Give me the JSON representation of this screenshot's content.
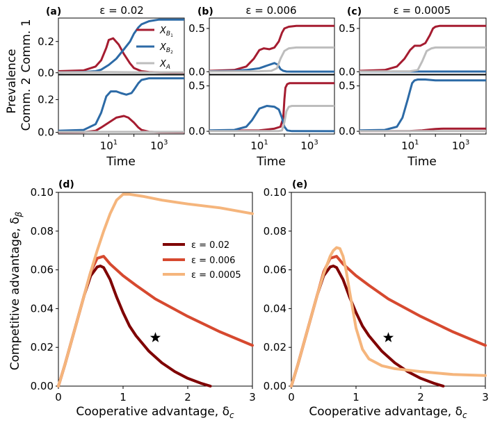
{
  "figure": {
    "shared": {
      "ylabel_prevalence": "Prevalence",
      "ylabel_comm1": "Comm. 1",
      "ylabel_comm2": "Comm. 2",
      "time_label": "Time",
      "time_ticks": [
        "10",
        "10"
      ],
      "time_tick_exponents": [
        "1",
        "3"
      ]
    },
    "top_panels": [
      {
        "label": "(a)",
        "title": "ε = 0.02"
      },
      {
        "label": "(b)",
        "title": "ε = 0.006"
      },
      {
        "label": "(c)",
        "title": "ε = 0.0005"
      }
    ],
    "top_legend": [
      {
        "text": "X",
        "sub": "B",
        "subsub": "1",
        "color": "#a51c30"
      },
      {
        "text": "X",
        "sub": "B",
        "subsub": "2",
        "color": "#2c6aa6"
      },
      {
        "text": "X",
        "sub": "A",
        "subsub": "",
        "color": "#bdbdbd"
      }
    ],
    "bottom_panels": [
      {
        "label": "(d)"
      },
      {
        "label": "(e)"
      }
    ],
    "bottom_axes": {
      "xlabel": "Cooperative advantage, δ",
      "xlabel_sub": "c",
      "ylabel": "Competitive advantage, δ",
      "ylabel_sub": "β",
      "xticks": [
        "0",
        "1",
        "2",
        "3"
      ],
      "yticks": [
        "0.00",
        "0.02",
        "0.04",
        "0.06",
        "0.08",
        "0.10"
      ]
    },
    "bottom_legend": [
      {
        "label": "ε = 0.02",
        "color": "#7f0000"
      },
      {
        "label": "ε = 0.006",
        "color": "#d6492f"
      },
      {
        "label": "ε = 0.0005",
        "color": "#f5b57c"
      }
    ]
  },
  "chart_data": [
    {
      "type": "line",
      "panel": "(a) Comm. 1",
      "title": "ε = 0.02",
      "xscale": "log",
      "xlim": [
        0.1,
        10000
      ],
      "ylim": [
        -0.01,
        0.35
      ],
      "yticks": [
        0.0,
        0.2
      ],
      "ytick_labels": [
        "0.0",
        "0.2"
      ],
      "series": [
        {
          "name": "X_B1",
          "x": [
            0.1,
            1,
            3,
            5,
            8,
            10,
            15,
            25,
            40,
            70,
            100,
            200,
            400,
            1000,
            3000,
            10000
          ],
          "y": [
            0.01,
            0.015,
            0.04,
            0.08,
            0.16,
            0.21,
            0.22,
            0.18,
            0.12,
            0.06,
            0.03,
            0.01,
            0.004,
            0.002,
            0.001,
            0.001
          ]
        },
        {
          "name": "X_B2",
          "x": [
            0.1,
            1,
            3,
            5,
            10,
            20,
            40,
            70,
            100,
            150,
            200,
            400,
            1000,
            3000,
            10000
          ],
          "y": [
            0.003,
            0.005,
            0.01,
            0.02,
            0.05,
            0.09,
            0.15,
            0.2,
            0.25,
            0.29,
            0.31,
            0.33,
            0.34,
            0.34,
            0.34
          ]
        },
        {
          "name": "X_A",
          "x": [
            0.1,
            10,
            100,
            1000,
            10000
          ],
          "y": [
            0.003,
            0.004,
            0.003,
            0.003,
            0.003
          ]
        }
      ]
    },
    {
      "type": "line",
      "panel": "(b) Comm. 1",
      "title": "ε = 0.006",
      "xscale": "log",
      "xlim": [
        0.1,
        10000
      ],
      "ylim": [
        -0.03,
        0.62
      ],
      "yticks": [
        0.0,
        0.5
      ],
      "ytick_labels": [
        "0.0",
        "0.5"
      ],
      "series": [
        {
          "name": "X_B1",
          "x": [
            0.1,
            1,
            3,
            6,
            10,
            15,
            25,
            40,
            60,
            80,
            100,
            150,
            300,
            1000,
            10000
          ],
          "y": [
            0.01,
            0.02,
            0.06,
            0.15,
            0.25,
            0.27,
            0.26,
            0.28,
            0.35,
            0.45,
            0.5,
            0.52,
            0.53,
            0.53,
            0.53
          ]
        },
        {
          "name": "X_B2",
          "x": [
            0.1,
            1,
            3,
            10,
            20,
            40,
            55,
            70,
            90,
            120,
            200,
            10000
          ],
          "y": [
            0.005,
            0.01,
            0.02,
            0.04,
            0.07,
            0.1,
            0.08,
            0.03,
            0.01,
            0.002,
            0.001,
            0.001
          ]
        },
        {
          "name": "X_A",
          "x": [
            0.1,
            10,
            30,
            50,
            70,
            100,
            150,
            300,
            1000,
            10000
          ],
          "y": [
            0.003,
            0.005,
            0.01,
            0.04,
            0.15,
            0.24,
            0.27,
            0.28,
            0.28,
            0.28
          ]
        }
      ]
    },
    {
      "type": "line",
      "panel": "(c) Comm. 1",
      "title": "ε = 0.0005",
      "xscale": "log",
      "xlim": [
        0.1,
        10000
      ],
      "ylim": [
        -0.03,
        0.62
      ],
      "yticks": [
        0.0,
        0.5
      ],
      "ytick_labels": [
        "0.0",
        "0.5"
      ],
      "series": [
        {
          "name": "X_B1",
          "x": [
            0.1,
            1,
            3,
            6,
            10,
            15,
            25,
            40,
            60,
            80,
            100,
            150,
            300,
            1000,
            10000
          ],
          "y": [
            0.01,
            0.02,
            0.06,
            0.15,
            0.25,
            0.3,
            0.3,
            0.33,
            0.42,
            0.5,
            0.52,
            0.53,
            0.53,
            0.53,
            0.53
          ]
        },
        {
          "name": "X_B2",
          "x": [
            0.1,
            100,
            1000,
            10000
          ],
          "y": [
            0.002,
            0.002,
            0.002,
            0.002
          ]
        },
        {
          "name": "X_A",
          "x": [
            0.1,
            10,
            20,
            30,
            45,
            70,
            100,
            300,
            1000,
            10000
          ],
          "y": [
            0.003,
            0.005,
            0.02,
            0.12,
            0.24,
            0.27,
            0.28,
            0.28,
            0.28,
            0.28
          ]
        }
      ]
    },
    {
      "type": "line",
      "panel": "(a) Comm. 2",
      "title": "",
      "xscale": "log",
      "xlim": [
        0.1,
        10000
      ],
      "ylim": [
        -0.01,
        0.35
      ],
      "yticks": [
        0.0,
        0.2
      ],
      "ytick_labels": [
        "0.0",
        "0.2"
      ],
      "series": [
        {
          "name": "X_B1",
          "x": [
            0.1,
            1,
            3,
            5,
            10,
            20,
            40,
            60,
            100,
            150,
            200,
            400,
            1000,
            10000
          ],
          "y": [
            0.001,
            0.002,
            0.01,
            0.03,
            0.06,
            0.09,
            0.1,
            0.09,
            0.06,
            0.03,
            0.015,
            0.004,
            0.002,
            0.001
          ]
        },
        {
          "name": "X_B2",
          "x": [
            0.1,
            1,
            3,
            5,
            8,
            12,
            20,
            30,
            50,
            80,
            100,
            150,
            200,
            400,
            1000,
            10000
          ],
          "y": [
            0.01,
            0.015,
            0.05,
            0.12,
            0.22,
            0.25,
            0.25,
            0.24,
            0.23,
            0.24,
            0.26,
            0.3,
            0.32,
            0.33,
            0.33,
            0.33
          ]
        },
        {
          "name": "X_A",
          "x": [
            0.1,
            100,
            10000
          ],
          "y": [
            0.003,
            0.003,
            0.003
          ]
        }
      ]
    },
    {
      "type": "line",
      "panel": "(b) Comm. 2",
      "title": "",
      "xscale": "log",
      "xlim": [
        0.1,
        10000
      ],
      "ylim": [
        -0.03,
        0.62
      ],
      "yticks": [
        0.0,
        0.5
      ],
      "ytick_labels": [
        "0.0",
        "0.5"
      ],
      "series": [
        {
          "name": "X_B1",
          "x": [
            0.1,
            10,
            40,
            70,
            90,
            100,
            110,
            130,
            160,
            300,
            10000
          ],
          "y": [
            0.005,
            0.01,
            0.03,
            0.05,
            0.15,
            0.35,
            0.48,
            0.52,
            0.53,
            0.53,
            0.53
          ]
        },
        {
          "name": "X_B2",
          "x": [
            0.1,
            1,
            3,
            5,
            10,
            20,
            40,
            60,
            80,
            100,
            130,
            200,
            10000
          ],
          "y": [
            0.01,
            0.015,
            0.05,
            0.12,
            0.25,
            0.28,
            0.27,
            0.24,
            0.15,
            0.05,
            0.01,
            0.002,
            0.001
          ]
        },
        {
          "name": "X_A",
          "x": [
            0.1,
            60,
            80,
            100,
            120,
            150,
            200,
            1000,
            10000
          ],
          "y": [
            0.002,
            0.003,
            0.01,
            0.1,
            0.22,
            0.27,
            0.28,
            0.28,
            0.28
          ]
        }
      ]
    },
    {
      "type": "line",
      "panel": "(c) Comm. 2",
      "title": "",
      "xscale": "log",
      "xlim": [
        0.1,
        10000
      ],
      "ylim": [
        -0.03,
        0.62
      ],
      "yticks": [
        0.0,
        0.5
      ],
      "ytick_labels": [
        "0.0",
        "0.5"
      ],
      "series": [
        {
          "name": "X_B1",
          "x": [
            0.1,
            10,
            30,
            60,
            100,
            200,
            1000,
            10000
          ],
          "y": [
            0.002,
            0.004,
            0.01,
            0.02,
            0.025,
            0.03,
            0.03,
            0.03
          ]
        },
        {
          "name": "X_B2",
          "x": [
            0.1,
            1,
            3,
            5,
            8,
            10,
            12,
            15,
            20,
            40,
            100,
            1000,
            10000
          ],
          "y": [
            0.01,
            0.015,
            0.05,
            0.15,
            0.35,
            0.45,
            0.53,
            0.56,
            0.57,
            0.57,
            0.56,
            0.56,
            0.56
          ]
        },
        {
          "name": "X_A",
          "x": [
            0.1,
            100,
            10000
          ],
          "y": [
            0.002,
            0.002,
            0.002
          ]
        }
      ]
    },
    {
      "type": "line",
      "panel": "(d)",
      "xlabel": "Cooperative advantage, δ_c",
      "ylabel": "Competitive advantage, δ_β",
      "xlim": [
        0,
        3
      ],
      "ylim": [
        0,
        0.1
      ],
      "series": [
        {
          "name": "ε = 0.02",
          "x": [
            0,
            0.1,
            0.2,
            0.3,
            0.4,
            0.5,
            0.6,
            0.65,
            0.7,
            0.8,
            0.9,
            1.0,
            1.1,
            1.2,
            1.4,
            1.6,
            1.8,
            2.0,
            2.2,
            2.35
          ],
          "y": [
            0,
            0.011,
            0.023,
            0.035,
            0.047,
            0.057,
            0.0615,
            0.062,
            0.0612,
            0.055,
            0.046,
            0.038,
            0.031,
            0.026,
            0.018,
            0.012,
            0.0075,
            0.004,
            0.0015,
            0
          ]
        },
        {
          "name": "ε = 0.006",
          "x": [
            0,
            0.1,
            0.2,
            0.3,
            0.4,
            0.5,
            0.6,
            0.7,
            0.8,
            1.0,
            1.2,
            1.5,
            2.0,
            2.5,
            3.0
          ],
          "y": [
            0,
            0.011,
            0.023,
            0.035,
            0.047,
            0.059,
            0.066,
            0.067,
            0.063,
            0.057,
            0.052,
            0.045,
            0.036,
            0.028,
            0.021
          ]
        },
        {
          "name": "ε = 0.0005",
          "x": [
            0,
            0.1,
            0.2,
            0.3,
            0.4,
            0.5,
            0.6,
            0.7,
            0.8,
            0.9,
            1.0,
            1.1,
            1.3,
            1.6,
            2.0,
            2.5,
            3.0
          ],
          "y": [
            0,
            0.011,
            0.023,
            0.035,
            0.047,
            0.059,
            0.07,
            0.08,
            0.089,
            0.096,
            0.099,
            0.099,
            0.098,
            0.096,
            0.094,
            0.092,
            0.089
          ]
        }
      ],
      "annotations": [
        {
          "type": "star",
          "x": 1.5,
          "y": 0.025
        }
      ]
    },
    {
      "type": "line",
      "panel": "(e)",
      "xlabel": "Cooperative advantage, δ_c",
      "ylabel": "Competitive advantage, δ_β",
      "xlim": [
        0,
        3
      ],
      "ylim": [
        0,
        0.1
      ],
      "series": [
        {
          "name": "ε = 0.02",
          "x": [
            0,
            0.1,
            0.2,
            0.3,
            0.4,
            0.5,
            0.6,
            0.65,
            0.7,
            0.8,
            0.9,
            1.0,
            1.1,
            1.2,
            1.4,
            1.6,
            1.8,
            2.0,
            2.2,
            2.35
          ],
          "y": [
            0,
            0.011,
            0.023,
            0.035,
            0.047,
            0.057,
            0.0615,
            0.062,
            0.0612,
            0.055,
            0.046,
            0.038,
            0.031,
            0.026,
            0.018,
            0.012,
            0.0075,
            0.004,
            0.0015,
            0
          ]
        },
        {
          "name": "ε = 0.006",
          "x": [
            0,
            0.1,
            0.2,
            0.3,
            0.4,
            0.5,
            0.6,
            0.7,
            0.8,
            1.0,
            1.2,
            1.5,
            2.0,
            2.5,
            3.0
          ],
          "y": [
            0,
            0.011,
            0.023,
            0.035,
            0.047,
            0.059,
            0.066,
            0.067,
            0.063,
            0.057,
            0.052,
            0.045,
            0.036,
            0.028,
            0.021
          ]
        },
        {
          "name": "ε = 0.0005",
          "x": [
            0,
            0.1,
            0.2,
            0.3,
            0.4,
            0.5,
            0.6,
            0.65,
            0.7,
            0.75,
            0.8,
            0.85,
            0.9,
            1.0,
            1.1,
            1.2,
            1.4,
            1.6,
            2.0,
            2.5,
            3.0
          ],
          "y": [
            0,
            0.011,
            0.023,
            0.035,
            0.047,
            0.058,
            0.067,
            0.07,
            0.0715,
            0.071,
            0.067,
            0.059,
            0.049,
            0.03,
            0.019,
            0.014,
            0.0105,
            0.009,
            0.0075,
            0.006,
            0.0055
          ]
        }
      ],
      "annotations": [
        {
          "type": "star",
          "x": 1.5,
          "y": 0.025
        }
      ]
    }
  ]
}
